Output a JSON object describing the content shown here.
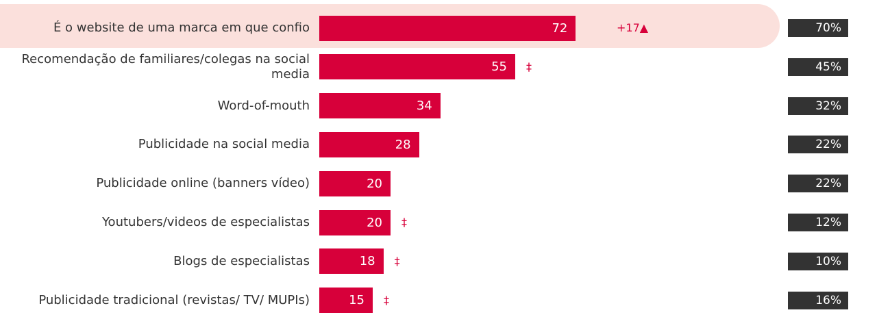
{
  "chart_data": {
    "type": "bar",
    "orientation": "horizontal",
    "categories": [
      "É o website de uma marca em que confio",
      "Recomendação de familiares/colegas na social media",
      "Word-of-mouth",
      "Publicidade na social media",
      "Publicidade online (banners vídeo)",
      "Youtubers/videos de especialistas",
      "Blogs de especialistas",
      "Publicidade tradicional (revistas/ TV/ MUPIs)"
    ],
    "values": [
      72,
      55,
      34,
      28,
      20,
      20,
      18,
      15
    ],
    "color": "#d7003a",
    "markers": [
      "+17▲",
      "‡",
      null,
      null,
      null,
      "‡",
      "‡",
      "‡"
    ],
    "comparison": {
      "values": [
        70,
        45,
        32,
        22,
        22,
        12,
        10,
        16
      ],
      "value_labels": [
        "70%",
        "45%",
        "32%",
        "22%",
        "22%",
        "12%",
        "10%",
        "16%"
      ],
      "color": "#333333"
    }
  }
}
